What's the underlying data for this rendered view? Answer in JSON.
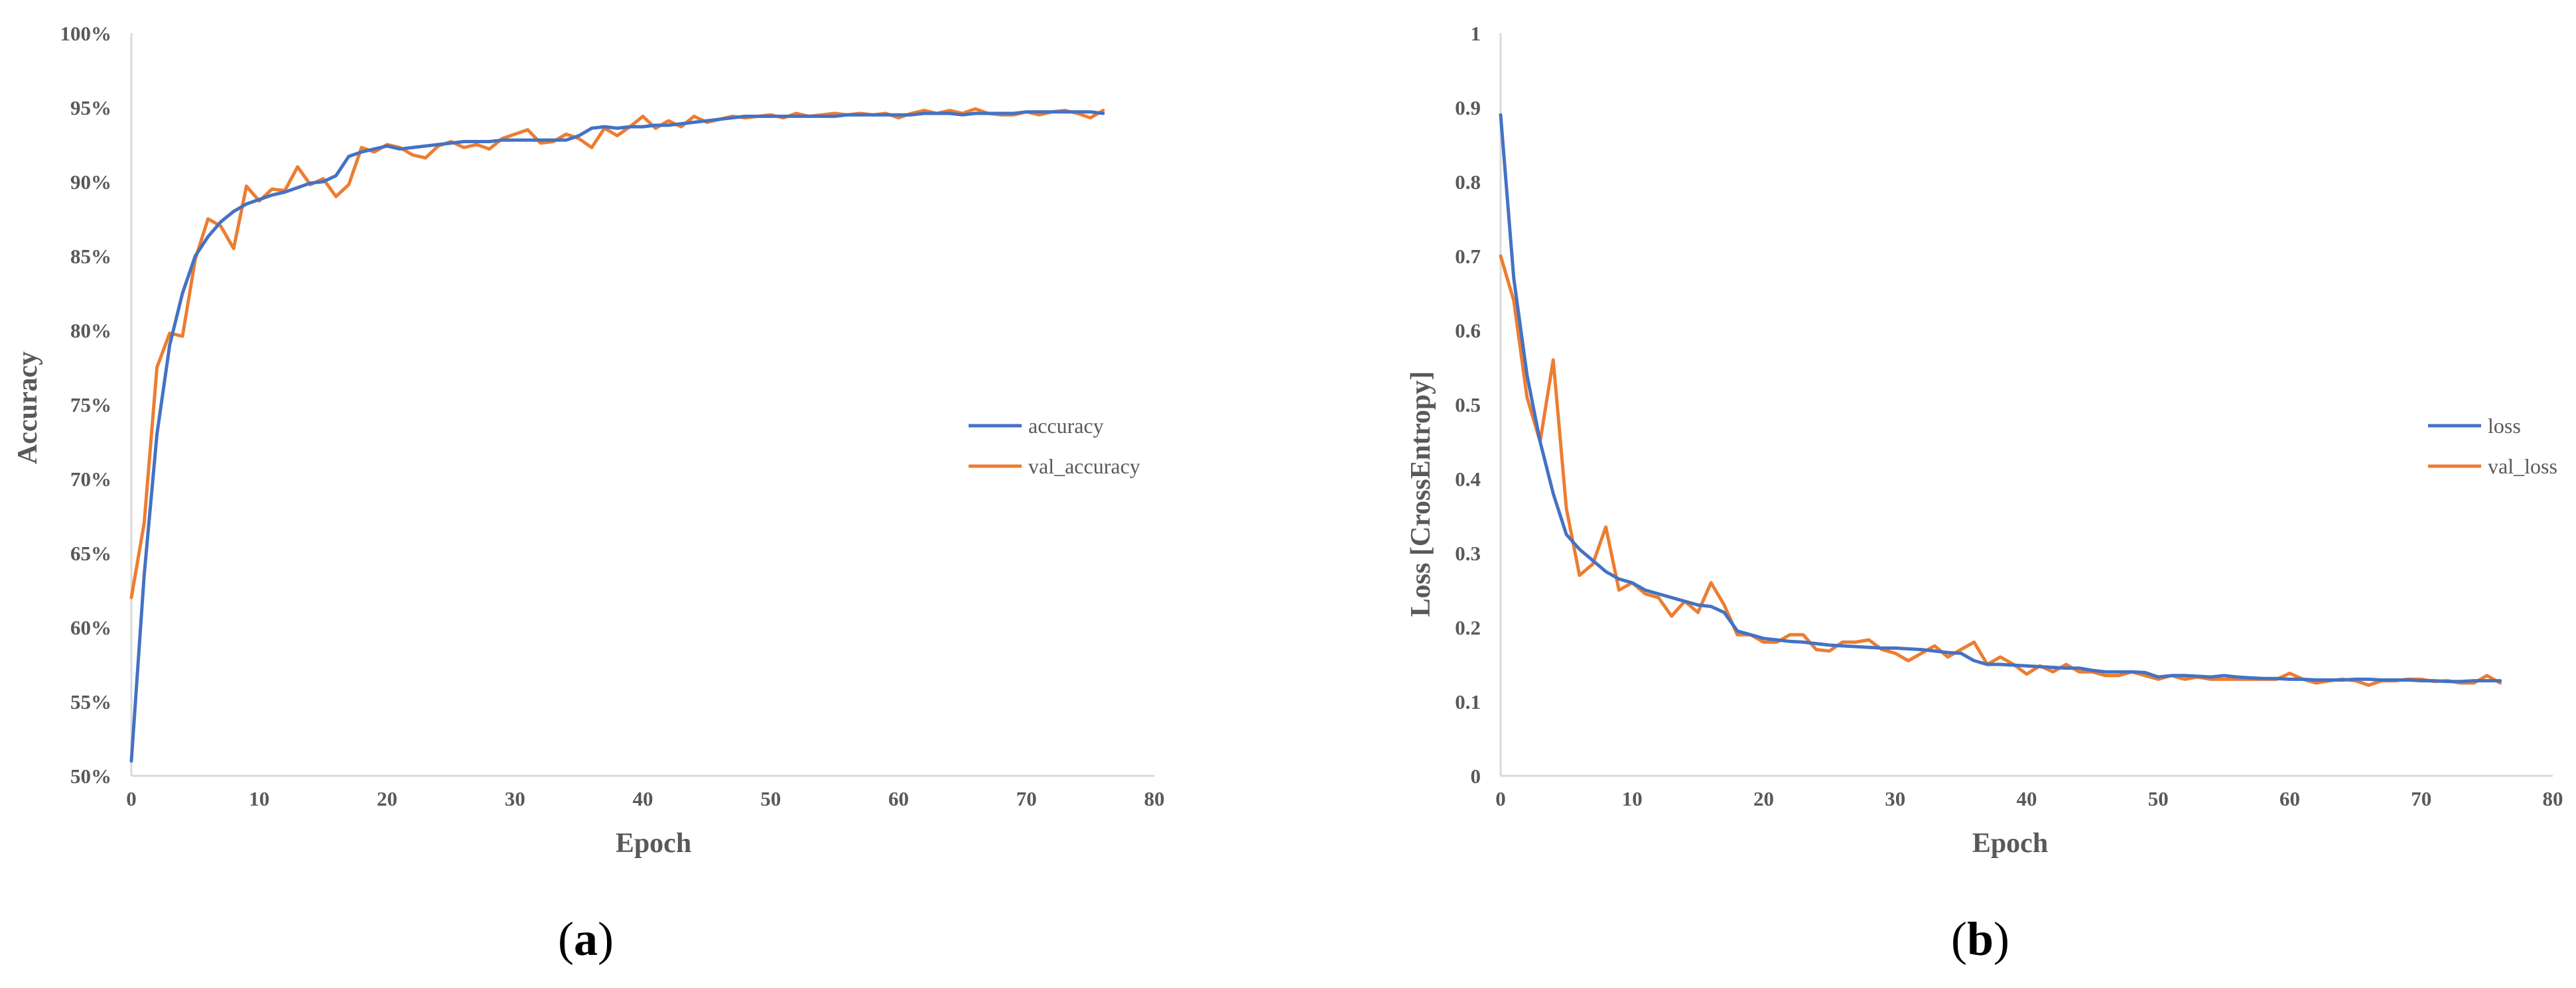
{
  "colors": {
    "train": "#4472C4",
    "val": "#ED7D31",
    "axis": "#D9D9D9",
    "text": "#595959"
  },
  "panels": [
    {
      "label_open": "(",
      "label_letter": "a",
      "label_close": ")"
    },
    {
      "label_open": "(",
      "label_letter": "b",
      "label_close": ")"
    }
  ],
  "chart_data": [
    {
      "type": "line",
      "xlabel": "Epoch",
      "ylabel": "Accuracy",
      "xlim": [
        0,
        80
      ],
      "ylim": [
        50,
        100
      ],
      "xticks": [
        0,
        10,
        20,
        30,
        40,
        50,
        60,
        70,
        80
      ],
      "yticks": [
        50,
        55,
        60,
        65,
        70,
        75,
        80,
        85,
        90,
        95,
        100
      ],
      "ytick_labels": [
        "50%",
        "55%",
        "60%",
        "65%",
        "70%",
        "75%",
        "80%",
        "85%",
        "90%",
        "95%",
        "100%"
      ],
      "grid": false,
      "legend_position": "right",
      "series": [
        {
          "name": "accuracy",
          "color": "#4472C4",
          "y": [
            51.0,
            63.5,
            73.0,
            79.0,
            82.5,
            85.0,
            86.3,
            87.3,
            88.0,
            88.5,
            88.8,
            89.1,
            89.3,
            89.6,
            89.9,
            90.0,
            90.4,
            91.7,
            92.0,
            92.2,
            92.4,
            92.2,
            92.3,
            92.4,
            92.5,
            92.6,
            92.7,
            92.7,
            92.7,
            92.8,
            92.8,
            92.8,
            92.8,
            92.8,
            92.8,
            93.1,
            93.6,
            93.7,
            93.6,
            93.7,
            93.7,
            93.8,
            93.8,
            93.9,
            94.0,
            94.1,
            94.2,
            94.3,
            94.4,
            94.4,
            94.4,
            94.4,
            94.4,
            94.4,
            94.4,
            94.4,
            94.5,
            94.5,
            94.5,
            94.5,
            94.5,
            94.5,
            94.6,
            94.6,
            94.6,
            94.5,
            94.6,
            94.6,
            94.6,
            94.6,
            94.7,
            94.7,
            94.7,
            94.7,
            94.7,
            94.7,
            94.6
          ]
        },
        {
          "name": "val_accuracy",
          "color": "#ED7D31",
          "y": [
            62.0,
            67.0,
            77.5,
            79.8,
            79.6,
            84.8,
            87.5,
            87.0,
            85.5,
            89.7,
            88.7,
            89.5,
            89.4,
            91.0,
            89.8,
            90.2,
            89.0,
            89.8,
            92.3,
            92.0,
            92.5,
            92.3,
            91.8,
            91.6,
            92.4,
            92.7,
            92.3,
            92.5,
            92.2,
            92.9,
            93.2,
            93.5,
            92.6,
            92.7,
            93.2,
            92.9,
            92.3,
            93.6,
            93.1,
            93.7,
            94.4,
            93.6,
            94.1,
            93.7,
            94.4,
            94.0,
            94.2,
            94.4,
            94.3,
            94.4,
            94.5,
            94.3,
            94.6,
            94.4,
            94.5,
            94.6,
            94.5,
            94.6,
            94.5,
            94.6,
            94.3,
            94.6,
            94.8,
            94.6,
            94.8,
            94.6,
            94.9,
            94.6,
            94.5,
            94.5,
            94.7,
            94.5,
            94.7,
            94.8,
            94.6,
            94.3,
            94.8
          ]
        }
      ]
    },
    {
      "type": "line",
      "xlabel": "Epoch",
      "ylabel": "Loss [CrossEntropy]",
      "xlim": [
        0,
        80
      ],
      "ylim": [
        0,
        1
      ],
      "xticks": [
        0,
        10,
        20,
        30,
        40,
        50,
        60,
        70,
        80
      ],
      "yticks": [
        0,
        0.1,
        0.2,
        0.3,
        0.4,
        0.5,
        0.6,
        0.7,
        0.8,
        0.9,
        1
      ],
      "ytick_labels": [
        "0",
        "0.1",
        "0.2",
        "0.3",
        "0.4",
        "0.5",
        "0.6",
        "0.7",
        "0.8",
        "0.9",
        "1"
      ],
      "grid": false,
      "legend_position": "right",
      "series": [
        {
          "name": "loss",
          "color": "#4472C4",
          "y": [
            0.89,
            0.67,
            0.54,
            0.45,
            0.38,
            0.325,
            0.305,
            0.29,
            0.275,
            0.265,
            0.26,
            0.25,
            0.245,
            0.24,
            0.235,
            0.23,
            0.228,
            0.22,
            0.195,
            0.19,
            0.185,
            0.183,
            0.181,
            0.18,
            0.178,
            0.176,
            0.175,
            0.174,
            0.173,
            0.172,
            0.172,
            0.171,
            0.17,
            0.168,
            0.166,
            0.165,
            0.155,
            0.15,
            0.15,
            0.149,
            0.148,
            0.147,
            0.146,
            0.145,
            0.145,
            0.142,
            0.14,
            0.14,
            0.14,
            0.139,
            0.133,
            0.135,
            0.135,
            0.134,
            0.133,
            0.135,
            0.133,
            0.132,
            0.131,
            0.131,
            0.13,
            0.13,
            0.129,
            0.129,
            0.129,
            0.13,
            0.13,
            0.129,
            0.129,
            0.129,
            0.128,
            0.128,
            0.127,
            0.127,
            0.128,
            0.128,
            0.128
          ]
        },
        {
          "name": "val_loss",
          "color": "#ED7D31",
          "y": [
            0.7,
            0.64,
            0.51,
            0.45,
            0.56,
            0.36,
            0.27,
            0.285,
            0.335,
            0.25,
            0.26,
            0.245,
            0.24,
            0.215,
            0.235,
            0.22,
            0.26,
            0.23,
            0.19,
            0.19,
            0.18,
            0.18,
            0.19,
            0.19,
            0.17,
            0.168,
            0.18,
            0.18,
            0.183,
            0.17,
            0.165,
            0.155,
            0.165,
            0.175,
            0.16,
            0.17,
            0.18,
            0.15,
            0.16,
            0.15,
            0.137,
            0.148,
            0.14,
            0.15,
            0.14,
            0.14,
            0.135,
            0.135,
            0.14,
            0.135,
            0.13,
            0.135,
            0.13,
            0.133,
            0.13,
            0.13,
            0.13,
            0.13,
            0.13,
            0.13,
            0.138,
            0.13,
            0.125,
            0.128,
            0.13,
            0.128,
            0.122,
            0.128,
            0.128,
            0.13,
            0.13,
            0.127,
            0.128,
            0.125,
            0.125,
            0.135,
            0.125
          ]
        }
      ]
    }
  ]
}
